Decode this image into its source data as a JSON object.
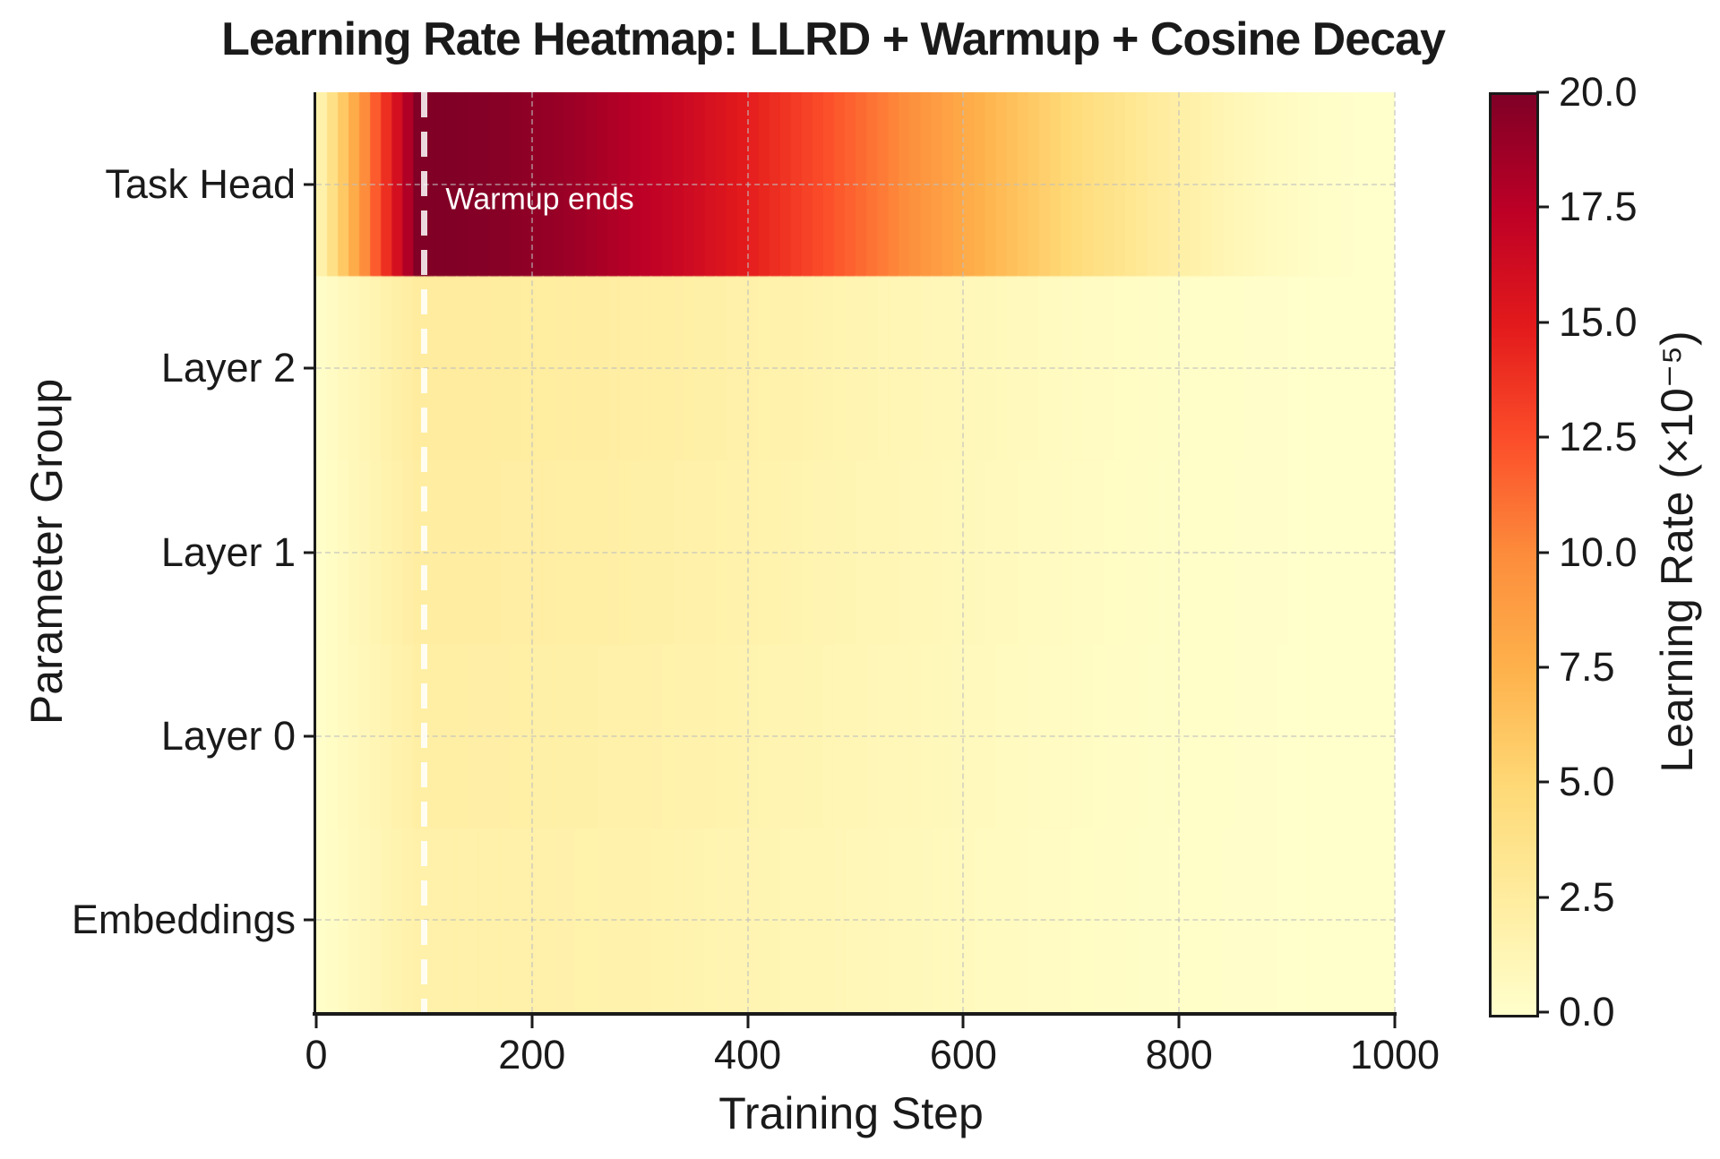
{
  "title": "Learning Rate Heatmap: LLRD + Warmup + Cosine Decay",
  "axes": {
    "x_label": "Training Step",
    "y_label": "Parameter Group",
    "x_tick_labels": [
      "0",
      "200",
      "400",
      "600",
      "800",
      "1000"
    ],
    "x_tick_values": [
      0,
      200,
      400,
      600,
      800,
      1000
    ],
    "x_gridline_values": [
      200,
      400,
      600,
      800,
      1000
    ],
    "y_tick_labels": [
      "Task Head",
      "Layer 2",
      "Layer 1",
      "Layer 0",
      "Embeddings"
    ]
  },
  "annotation": {
    "text": "Warmup ends",
    "at_step": 100
  },
  "colorbar": {
    "label": "Learning Rate (×10⁻⁵)",
    "tick_labels": [
      "20.0",
      "17.5",
      "15.0",
      "12.5",
      "10.0",
      "7.5",
      "5.0",
      "2.5",
      "0.0"
    ],
    "tick_values": [
      20.0,
      17.5,
      15.0,
      12.5,
      10.0,
      7.5,
      5.0,
      2.5,
      0.0
    ],
    "vmin": 0.0,
    "vmax": 20.0
  },
  "chart_data": {
    "type": "heatmap",
    "title": "Learning Rate Heatmap: LLRD + Warmup + Cosine Decay",
    "xlabel": "Training Step",
    "ylabel": "Parameter Group",
    "x_range": [
      0,
      1000
    ],
    "x_bin_size": 10,
    "rows": [
      {
        "label": "Task Head",
        "peak_lr_x1e5": 20.0
      },
      {
        "label": "Layer 2",
        "peak_lr_x1e5": 2.6
      },
      {
        "label": "Layer 1",
        "peak_lr_x1e5": 2.4
      },
      {
        "label": "Layer 0",
        "peak_lr_x1e5": 2.2
      },
      {
        "label": "Embeddings",
        "peak_lr_x1e5": 2.0
      }
    ],
    "schedule": {
      "shape": "linear warmup to peak, then cosine decay to 0",
      "warmup_steps": 100,
      "total_steps": 1000
    },
    "schedule_multiplier_every_50_steps": [
      0.0,
      0.5,
      1.0,
      0.992,
      0.97,
      0.933,
      0.883,
      0.821,
      0.75,
      0.671,
      0.587,
      0.5,
      0.413,
      0.329,
      0.25,
      0.179,
      0.117,
      0.067,
      0.03,
      0.008,
      0.0
    ],
    "cell_value_rule": "value(row, t) = peak_lr_x1e5[row] × schedule_multiplier(t)",
    "colormap": {
      "name": "YlOrRd",
      "stops": [
        "#ffffcc",
        "#ffeda0",
        "#fed976",
        "#feb24c",
        "#fd8d3c",
        "#fc4e2a",
        "#e31a1c",
        "#bd0026",
        "#800026"
      ]
    },
    "legend_position": "right colorbar",
    "grid": "dashed gray lines at x ticks and row centers"
  },
  "style": {
    "background": "#ffffff",
    "text_color": "#1a1a1a",
    "spine_color": "#1a1a1a",
    "grid_color": "#bfbfbf",
    "warmup_line_color": "rgba(255,255,255,0.85)",
    "annotation_text_color": "#ffffff"
  }
}
